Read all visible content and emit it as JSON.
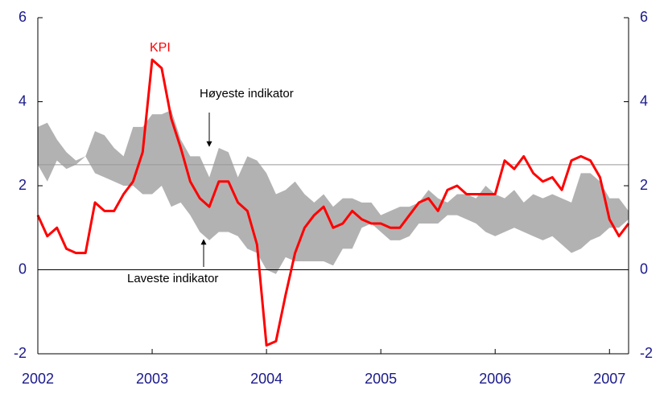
{
  "chart_data": {
    "type": "line",
    "x": [
      2002,
      2002.083,
      2002.167,
      2002.25,
      2002.333,
      2002.417,
      2002.5,
      2002.583,
      2002.667,
      2002.75,
      2002.833,
      2002.917,
      2003,
      2003.083,
      2003.167,
      2003.25,
      2003.333,
      2003.417,
      2003.5,
      2003.583,
      2003.667,
      2003.75,
      2003.833,
      2003.917,
      2004,
      2004.083,
      2004.167,
      2004.25,
      2004.333,
      2004.417,
      2004.5,
      2004.583,
      2004.667,
      2004.75,
      2004.833,
      2004.917,
      2005,
      2005.083,
      2005.167,
      2005.25,
      2005.333,
      2005.417,
      2005.5,
      2005.583,
      2005.667,
      2005.75,
      2005.833,
      2005.917,
      2006,
      2006.083,
      2006.167,
      2006.25,
      2006.333,
      2006.417,
      2006.5,
      2006.583,
      2006.667,
      2006.75,
      2006.833,
      2006.917,
      2007,
      2007.083,
      2007.167
    ],
    "series": [
      {
        "name": "KPI",
        "color": "#ff0000",
        "values": [
          1.3,
          0.8,
          1.0,
          0.5,
          0.4,
          0.4,
          1.6,
          1.4,
          1.4,
          1.8,
          2.1,
          2.8,
          5.0,
          4.8,
          3.6,
          2.9,
          2.1,
          1.7,
          1.5,
          2.1,
          2.1,
          1.6,
          1.4,
          0.6,
          -1.8,
          -1.7,
          -0.6,
          0.4,
          1.0,
          1.3,
          1.5,
          1.0,
          1.1,
          1.4,
          1.2,
          1.1,
          1.1,
          1.0,
          1.0,
          1.3,
          1.6,
          1.7,
          1.4,
          1.9,
          2.0,
          1.8,
          1.8,
          1.8,
          1.8,
          2.6,
          2.4,
          2.7,
          2.3,
          2.1,
          2.2,
          1.9,
          2.6,
          2.7,
          2.6,
          2.2,
          1.2,
          0.8,
          1.1
        ]
      },
      {
        "name": "Høyeste indikator",
        "color": "#b2b2b2",
        "values": [
          3.4,
          3.5,
          3.1,
          2.8,
          2.6,
          2.7,
          3.3,
          3.2,
          2.9,
          2.7,
          3.4,
          3.4,
          3.7,
          3.7,
          3.8,
          3.1,
          2.7,
          2.7,
          2.2,
          2.9,
          2.8,
          2.2,
          2.7,
          2.6,
          2.3,
          1.8,
          1.9,
          2.1,
          1.8,
          1.6,
          1.8,
          1.5,
          1.7,
          1.7,
          1.6,
          1.6,
          1.3,
          1.4,
          1.5,
          1.5,
          1.6,
          1.9,
          1.7,
          1.6,
          1.8,
          1.8,
          1.7,
          2.0,
          1.8,
          1.7,
          1.9,
          1.6,
          1.8,
          1.7,
          1.8,
          1.7,
          1.6,
          2.3,
          2.3,
          2.1,
          1.7,
          1.7,
          1.4
        ]
      },
      {
        "name": "Laveste indikator",
        "color": "#b2b2b2",
        "values": [
          2.5,
          2.1,
          2.6,
          2.4,
          2.5,
          2.7,
          2.3,
          2.2,
          2.1,
          2.0,
          2.0,
          1.8,
          1.8,
          2.0,
          1.5,
          1.6,
          1.3,
          0.9,
          0.7,
          0.9,
          0.9,
          0.8,
          0.5,
          0.4,
          0.0,
          -0.1,
          0.3,
          0.2,
          0.2,
          0.2,
          0.2,
          0.1,
          0.5,
          0.5,
          1.0,
          1.1,
          0.9,
          0.7,
          0.7,
          0.8,
          1.1,
          1.1,
          1.1,
          1.3,
          1.3,
          1.2,
          1.1,
          0.9,
          0.8,
          0.9,
          1.0,
          0.9,
          0.8,
          0.7,
          0.8,
          0.6,
          0.4,
          0.5,
          0.7,
          0.8,
          1.0,
          1.0,
          1.2
        ]
      }
    ],
    "band_between": [
      1,
      2
    ],
    "reference_line": 2.5,
    "xlim": [
      2002,
      2007.167
    ],
    "xticks": [
      2002,
      2003,
      2004,
      2005,
      2006,
      2007
    ],
    "ylim": [
      -2,
      6
    ],
    "yticks": [
      -2,
      0,
      2,
      4,
      6
    ],
    "y2lim": [
      -2,
      6
    ],
    "y2ticks": [
      -2,
      0,
      2,
      4,
      6
    ]
  }
}
